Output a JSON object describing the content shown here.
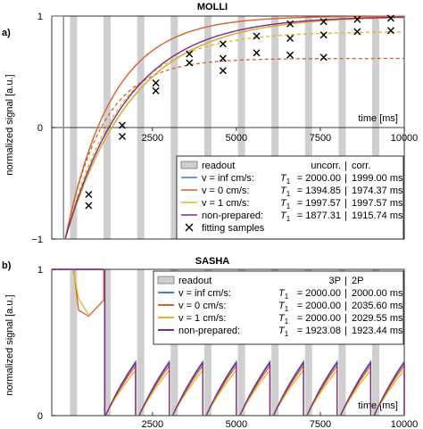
{
  "chart_data": [
    {
      "panel_label": "a)",
      "title": "MOLLI",
      "type": "line",
      "xlabel": "time [ms]",
      "ylabel": "normalized signal [a.u.]",
      "xlim": [
        -500,
        10000
      ],
      "ylim": [
        -1,
        1
      ],
      "x_ticks": [
        2500,
        5000,
        7500,
        10000
      ],
      "x_tick_labels": [
        "2500",
        "5000",
        "7500",
        "10000"
      ],
      "y_ticks": [
        -1,
        0,
        1
      ],
      "y_tick_labels": [
        "−1",
        "0",
        "1"
      ],
      "readout_times": [
        150,
        1150,
        2150,
        3150,
        4150,
        5150,
        6150,
        7150,
        8150,
        9150
      ],
      "legend": {
        "readout_label": "readout",
        "header_uncorr": "uncorr.",
        "header_corr": "corr.",
        "rows": [
          {
            "label": "v = inf cm/s:",
            "t1_label": "T",
            "t1_sub": "1",
            "uncorr": "= 2000.00",
            "corr": "1999.00 ms",
            "color": "#3a7fbf"
          },
          {
            "label": "v = 0 cm/s:",
            "t1_label": "T",
            "t1_sub": "1",
            "uncorr": "= 1394.85",
            "corr": "1974.37 ms",
            "color": "#d9602a"
          },
          {
            "label": "v = 1 cm/s:",
            "t1_label": "T",
            "t1_sub": "1",
            "uncorr": "= 1997.57",
            "corr": "1997.57 ms",
            "color": "#e8b422"
          },
          {
            "label": "non-prepared:",
            "t1_label": "T",
            "t1_sub": "1",
            "uncorr": "= 1877.31",
            "corr": "1915.74 ms",
            "color": "#7b2d8e"
          }
        ],
        "samples_label": "fitting samples"
      },
      "series": [
        {
          "name": "v = inf cm/s",
          "color": "#3a7fbf",
          "t1": 2000
        },
        {
          "name": "v = 0 cm/s",
          "color": "#d9602a",
          "t1": 1395
        },
        {
          "name": "v = 1 cm/s",
          "color": "#e8b422",
          "t1": 1998
        },
        {
          "name": "non-prepared",
          "color": "#7b2d8e",
          "t1": 1877
        }
      ],
      "fitting_samples": [
        {
          "x": 600,
          "y": -0.6
        },
        {
          "x": 600,
          "y": -0.7
        },
        {
          "x": 1600,
          "y": 0.02
        },
        {
          "x": 1600,
          "y": -0.08
        },
        {
          "x": 2600,
          "y": 0.4
        },
        {
          "x": 2600,
          "y": 0.33
        },
        {
          "x": 3600,
          "y": 0.66
        },
        {
          "x": 3600,
          "y": 0.58
        },
        {
          "x": 4600,
          "y": 0.75
        },
        {
          "x": 4600,
          "y": 0.62
        },
        {
          "x": 4600,
          "y": 0.51
        },
        {
          "x": 5600,
          "y": 0.82
        },
        {
          "x": 5600,
          "y": 0.67
        },
        {
          "x": 6600,
          "y": 0.93
        },
        {
          "x": 6600,
          "y": 0.8
        },
        {
          "x": 6600,
          "y": 0.65
        },
        {
          "x": 7600,
          "y": 0.95
        },
        {
          "x": 7600,
          "y": 0.83
        },
        {
          "x": 7600,
          "y": 0.63
        },
        {
          "x": 8600,
          "y": 0.97
        },
        {
          "x": 8600,
          "y": 0.86
        },
        {
          "x": 9600,
          "y": 0.98
        },
        {
          "x": 9600,
          "y": 0.87
        }
      ]
    },
    {
      "panel_label": "b)",
      "title": "SASHA",
      "type": "line",
      "xlabel": "time [ms]",
      "ylabel": "normalized signal [a.u.]",
      "xlim": [
        -500,
        10000
      ],
      "ylim": [
        0,
        1
      ],
      "x_ticks": [
        2500,
        5000,
        7500,
        10000
      ],
      "x_tick_labels": [
        "2500",
        "5000",
        "7500",
        "10000"
      ],
      "y_ticks": [
        0,
        1
      ],
      "y_tick_labels": [
        "0",
        "1"
      ],
      "readout_times": [
        150,
        1150,
        2150,
        3150,
        4150,
        5150,
        6150,
        7150,
        8150,
        9150
      ],
      "legend": {
        "readout_label": "readout",
        "header_uncorr": "3P",
        "header_corr": "2P",
        "rows": [
          {
            "label": "v = inf cm/s:",
            "t1_label": "T",
            "t1_sub": "1",
            "uncorr": "= 2000.00",
            "corr": "2000.00 ms",
            "color": "#3a7fbf"
          },
          {
            "label": "v = 0 cm/s:",
            "t1_label": "T",
            "t1_sub": "1",
            "uncorr": "= 2000.00",
            "corr": "2035.60 ms",
            "color": "#d9602a"
          },
          {
            "label": "v = 1 cm/s:",
            "t1_label": "T",
            "t1_sub": "1",
            "uncorr": "= 2000.00",
            "corr": "2029.55 ms",
            "color": "#e8b422"
          },
          {
            "label": "non-prepared:",
            "t1_label": "T",
            "t1_sub": "1",
            "uncorr": "= 1923.08",
            "corr": "1923.44 ms",
            "color": "#7b2d8e"
          }
        ]
      },
      "series": [
        {
          "name": "v = inf cm/s",
          "color": "#3a7fbf"
        },
        {
          "name": "v = 0 cm/s",
          "color": "#d9602a"
        },
        {
          "name": "v = 1 cm/s",
          "color": "#e8b422"
        },
        {
          "name": "non-prepared",
          "color": "#7b2d8e"
        }
      ]
    }
  ]
}
